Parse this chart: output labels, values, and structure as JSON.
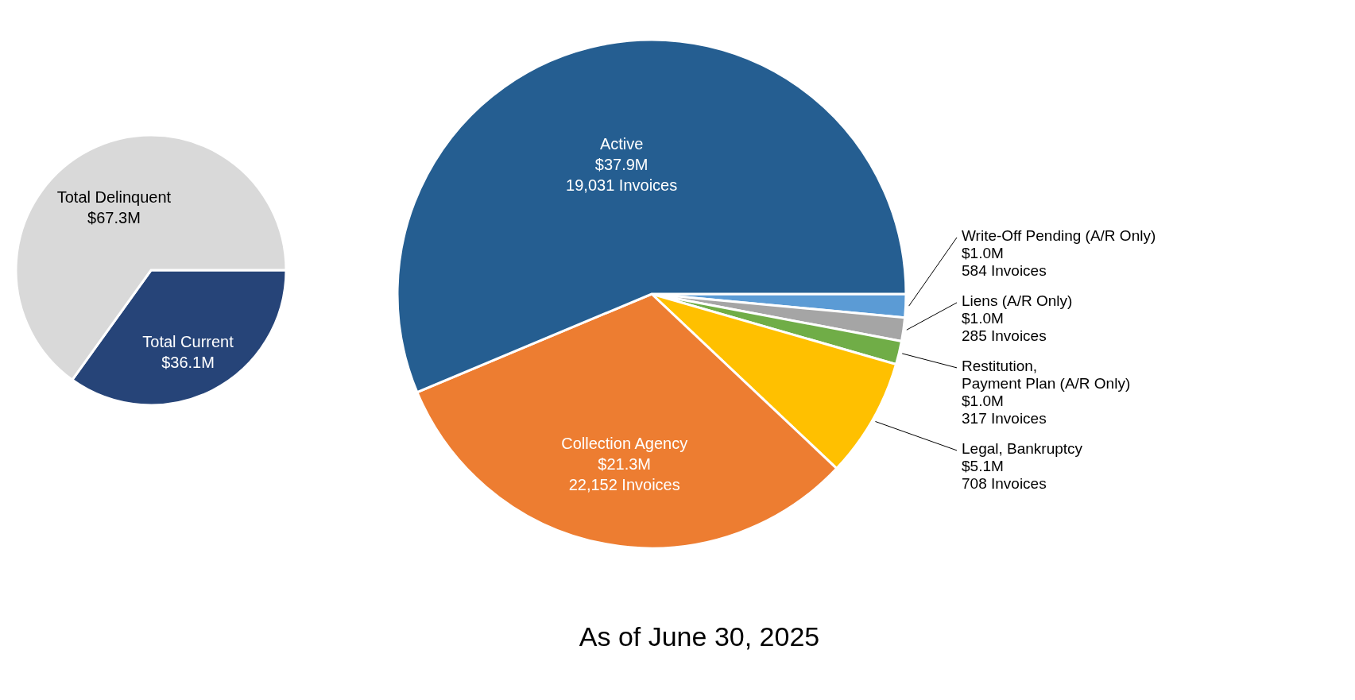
{
  "chart_data": [
    {
      "type": "pie",
      "categories": [
        "Total Current",
        "Total Delinquent"
      ],
      "values": [
        36.1,
        67.3
      ],
      "colors": [
        "#264478",
        "#d9d9d9"
      ],
      "value_labels": [
        "$36.1M",
        "$67.3M"
      ]
    },
    {
      "type": "pie",
      "categories": [
        "Write-Off Pending (A/R Only)",
        "Liens (A/R Only)",
        "Restitution, Payment Plan (A/R Only)",
        "Legal, Bankruptcy",
        "Collection Agency",
        "Active"
      ],
      "values": [
        1.0,
        1.0,
        1.0,
        5.1,
        21.3,
        37.9
      ],
      "colors": [
        "#5b9bd5",
        "#a5a5a5",
        "#70ad47",
        "#ffc000",
        "#ed7d31",
        "#255e91"
      ],
      "value_labels": [
        "$1.0M",
        "$1.0M",
        "$1.0M",
        "$5.1M",
        "$21.3M",
        "$37.9M"
      ],
      "annotations": [
        {
          "text": "584 Invoices",
          "x": "Write-Off Pending (A/R Only)"
        },
        {
          "text": "285 Invoices",
          "x": "Liens (A/R Only)"
        },
        {
          "text": "317 Invoices",
          "x": "Restitution, Payment Plan (A/R Only)"
        },
        {
          "text": "708 Invoices",
          "x": "Legal, Bankruptcy"
        },
        {
          "text": "22,152 Invoices",
          "x": "Collection Agency"
        },
        {
          "text": "19,031 Invoices",
          "x": "Active"
        },
        "As of June 30, 2025"
      ]
    }
  ]
}
